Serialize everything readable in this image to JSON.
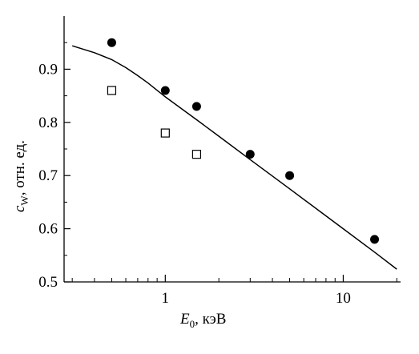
{
  "chart_data": {
    "type": "scatter",
    "xscale": "log",
    "xlim": [
      0.27,
      21
    ],
    "ylim": [
      0.5,
      1.0
    ],
    "grid": false,
    "legend": "none",
    "xlabel": {
      "main": "E",
      "sub": "0",
      "unit": ", кэВ"
    },
    "ylabel": {
      "main": "c",
      "sub": "W",
      "unit": ", отн. ед."
    },
    "xticks": [
      1,
      10
    ],
    "xtick_labels": [
      "1",
      "10"
    ],
    "yticks": [
      0.5,
      0.6,
      0.7,
      0.8,
      0.9
    ],
    "ytick_labels": [
      "0.5",
      "0.6",
      "0.7",
      "0.8",
      "0.9"
    ],
    "series": [
      {
        "marker": "filled-circle",
        "x": [
          0.5,
          1.0,
          1.5,
          3.0,
          5.0,
          15.0
        ],
        "y": [
          0.95,
          0.86,
          0.83,
          0.74,
          0.7,
          0.58
        ]
      },
      {
        "marker": "open-square",
        "x": [
          0.5,
          1.0,
          1.5
        ],
        "y": [
          0.86,
          0.78,
          0.74
        ]
      },
      {
        "marker": "line",
        "x": [
          0.3,
          0.4,
          0.5,
          0.6,
          0.7,
          0.8,
          1.0,
          1.5,
          2.0,
          3.0,
          5.0,
          10.0,
          15.0,
          20.0
        ],
        "y": [
          0.944,
          0.931,
          0.918,
          0.903,
          0.888,
          0.874,
          0.848,
          0.805,
          0.774,
          0.73,
          0.675,
          0.6,
          0.556,
          0.524
        ]
      }
    ]
  },
  "colors": {
    "ink": "#000000",
    "background": "#ffffff"
  }
}
